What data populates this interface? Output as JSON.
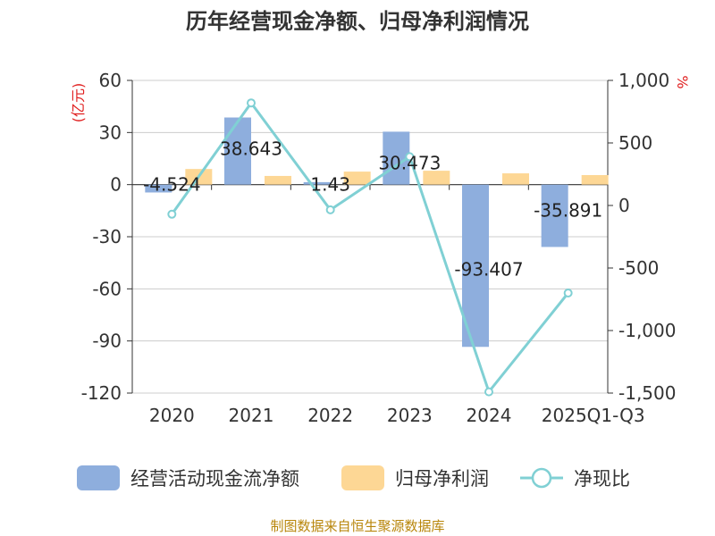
{
  "chart_data": {
    "type": "bar",
    "title": "历年经营现金净额、归母净利润情况",
    "categories": [
      "2020",
      "2021",
      "2022",
      "2023",
      "2024",
      "2025Q1-Q3"
    ],
    "left_axis": {
      "unit": "(亿元)",
      "ylim": [
        -120,
        60
      ],
      "ticks": [
        60,
        30,
        0,
        -30,
        -60,
        -90,
        -120
      ]
    },
    "right_axis": {
      "unit": "%",
      "ylim": [
        -1500,
        1000
      ],
      "ticks": [
        "1,000",
        "500",
        "0",
        "-500",
        "-1,000",
        "-1,500"
      ],
      "tick_values": [
        1000,
        500,
        0,
        -500,
        -1000,
        -1500
      ]
    },
    "series": [
      {
        "name": "经营活动现金流净额",
        "type": "bar",
        "axis": "left",
        "color": "#8eaedd",
        "values": [
          -4.524,
          38.643,
          1.43,
          30.473,
          -93.407,
          -35.891
        ],
        "labels": [
          "-4.524",
          "38.643",
          "1.43",
          "30.473",
          "-93.407",
          "-35.891"
        ]
      },
      {
        "name": "归母净利润",
        "type": "bar",
        "axis": "left",
        "color": "#fdd795",
        "values": [
          9.0,
          5.0,
          7.5,
          8.0,
          6.5,
          5.5
        ]
      },
      {
        "name": "净现比",
        "type": "line",
        "axis": "right",
        "color": "#80d0d4",
        "values": [
          -70,
          820,
          -35,
          390,
          -1490,
          -700
        ]
      }
    ],
    "legend_position": "bottom",
    "source": "制图数据来自恒生聚源数据库"
  }
}
